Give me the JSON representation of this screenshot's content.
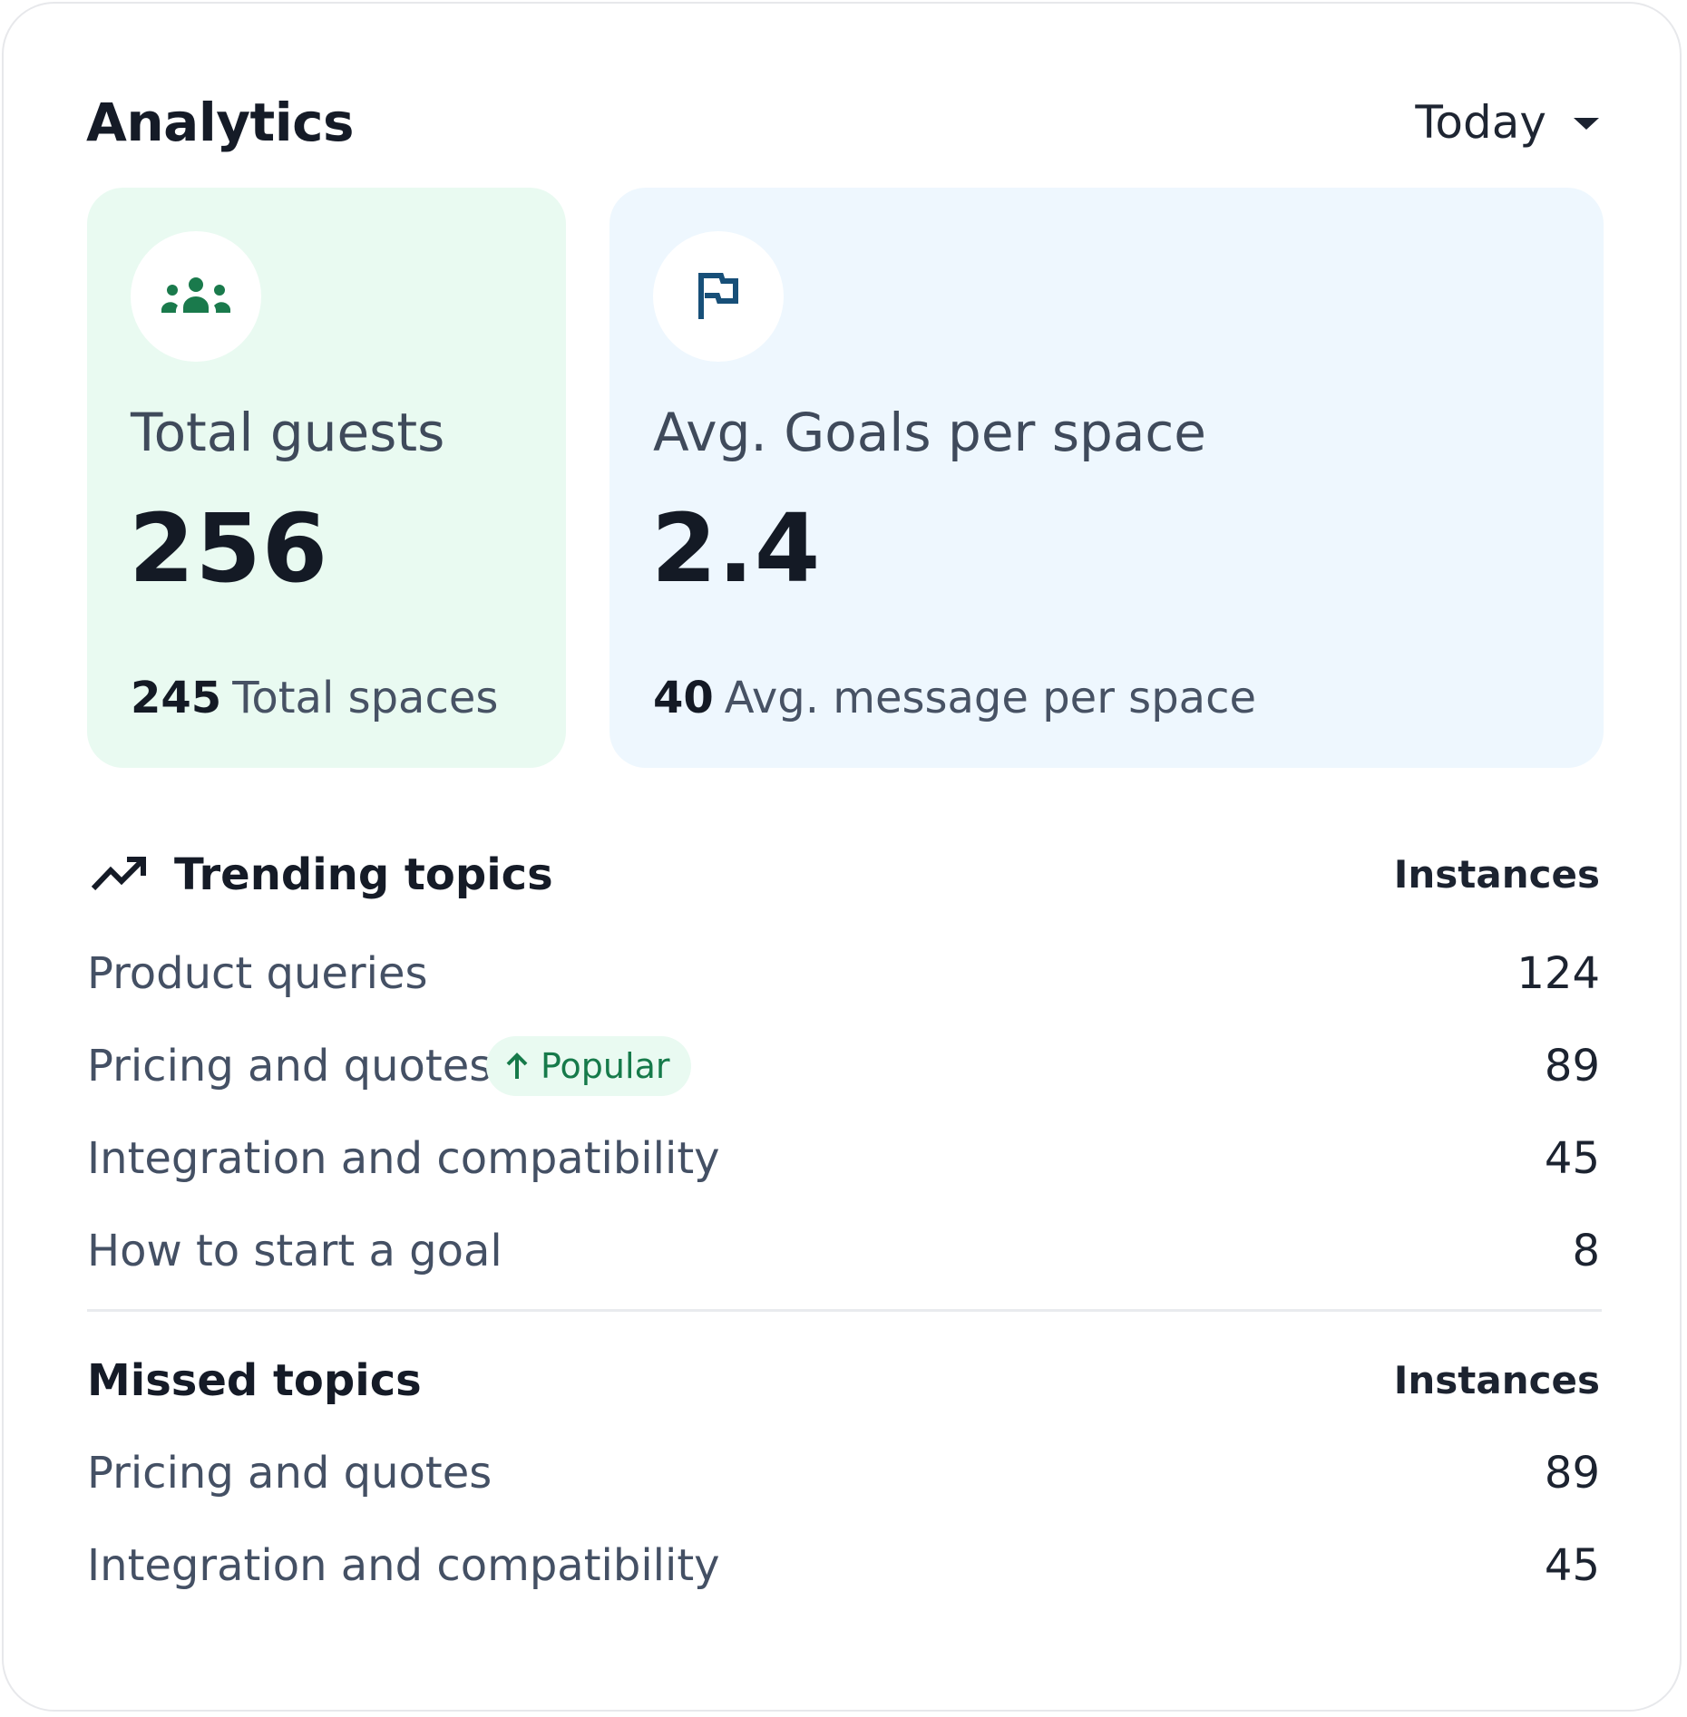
{
  "header": {
    "title": "Analytics",
    "period": "Today"
  },
  "stats": {
    "guests": {
      "icon": "group-icon",
      "label": "Total guests",
      "value": "256",
      "foot_value": "245",
      "foot_label": "Total spaces",
      "accent": "#1a7a4c",
      "background": "#e9faf1"
    },
    "goals": {
      "icon": "flag-icon",
      "label": "Avg. Goals per space",
      "value": "2.4",
      "foot_value": "40",
      "foot_label": "Avg. message per space",
      "accent": "#174f78",
      "background": "#eef7fe"
    }
  },
  "trending": {
    "title": "Trending topics",
    "column": "Instances",
    "rows": [
      {
        "label": "Product queries",
        "value": "124"
      },
      {
        "label": "Pricing and quotes",
        "value": "89",
        "badge": "Popular"
      },
      {
        "label": "Integration and compatibility",
        "value": "45"
      },
      {
        "label": "How to start a goal",
        "value": "8"
      }
    ]
  },
  "missed": {
    "title": "Missed topics",
    "column": "Instances",
    "rows": [
      {
        "label": "Pricing and quotes",
        "value": "89"
      },
      {
        "label": "Integration and compatibility",
        "value": "45"
      }
    ]
  }
}
